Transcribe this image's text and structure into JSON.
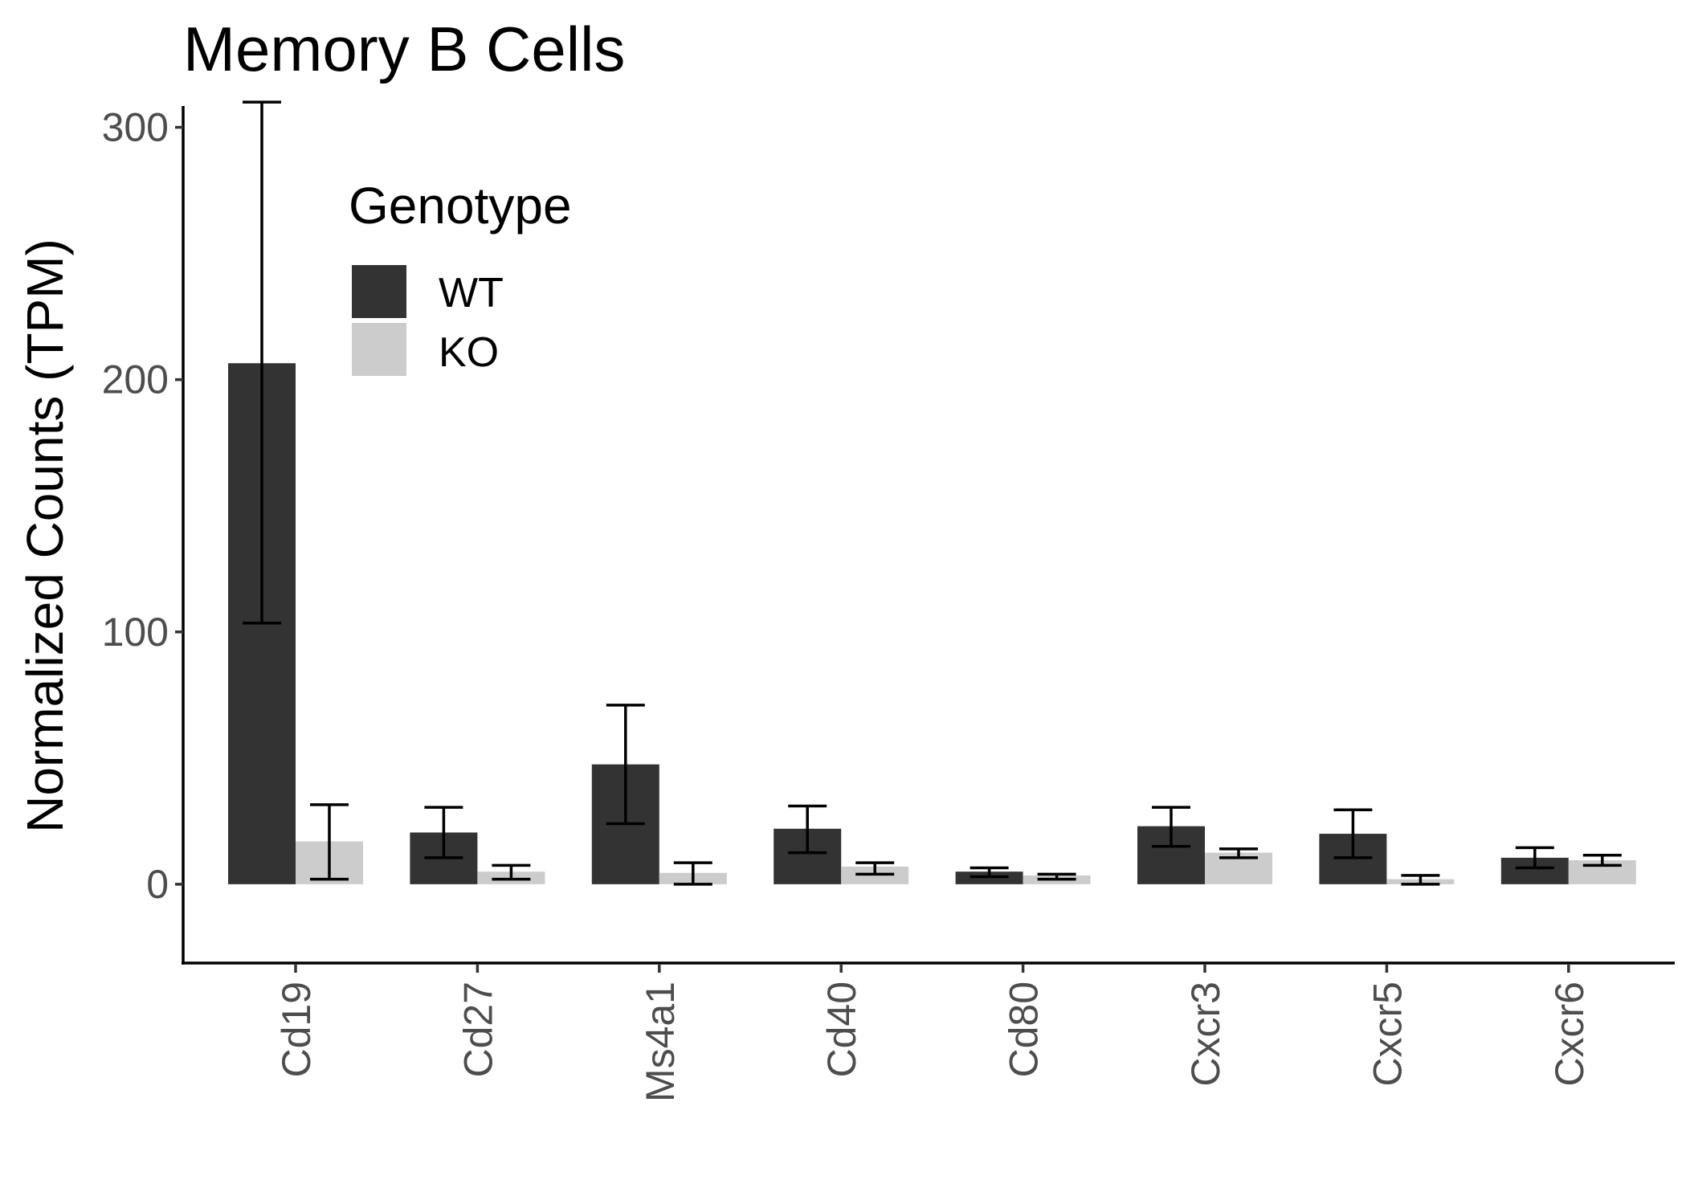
{
  "chart_data": {
    "type": "bar",
    "title": "Memory B Cells",
    "xlabel": "",
    "ylabel": "Normalized Counts (TPM)",
    "ylim": [
      -15,
      325
    ],
    "yticks": [
      0,
      100,
      200,
      300
    ],
    "categories": [
      "Cd19",
      "Cd27",
      "Ms4a1",
      "Cd40",
      "Cd80",
      "Cxcr3",
      "Cxcr5",
      "Cxcr6"
    ],
    "series": [
      {
        "name": "WT",
        "color": "#333333",
        "values": [
          206.5,
          20.5,
          47.5,
          22,
          5,
          23,
          20,
          10.5
        ],
        "err_low": [
          103.5,
          10.5,
          24,
          12.5,
          3,
          15,
          10.5,
          6.5
        ],
        "err_high": [
          310,
          30.5,
          71,
          31,
          6.5,
          30.5,
          29.5,
          14.5
        ]
      },
      {
        "name": "KO",
        "color": "#cccccc",
        "values": [
          17,
          5,
          4.5,
          7,
          3.5,
          12.5,
          2,
          9.5
        ],
        "err_low": [
          2,
          2,
          0,
          4,
          2,
          10.5,
          0,
          7.5
        ],
        "err_high": [
          31.5,
          7.5,
          8.5,
          8.5,
          4,
          14,
          3.5,
          11.5
        ]
      }
    ],
    "legend": {
      "title": "Genotype",
      "position": "top-left-inside"
    },
    "grid": false
  }
}
